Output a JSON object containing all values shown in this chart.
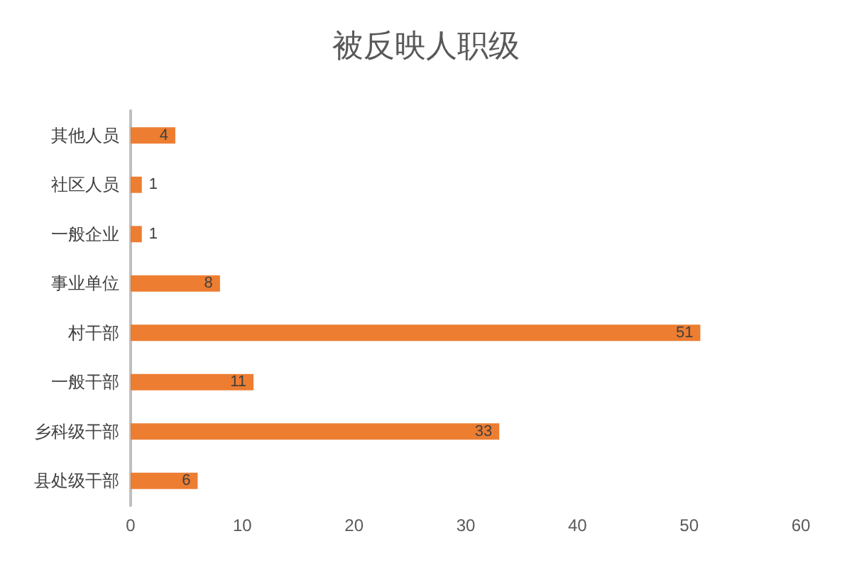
{
  "chart_data": {
    "type": "bar",
    "title": "被反映人职级",
    "orientation": "horizontal",
    "categories": [
      "其他人员",
      "社区人员",
      "一般企业",
      "事业单位",
      "村干部",
      "一般干部",
      "乡科级干部",
      "县处级干部"
    ],
    "values": [
      4,
      1,
      1,
      8,
      51,
      11,
      33,
      6
    ],
    "color": "#ed7d31",
    "xlim": [
      0,
      60
    ],
    "xticks": [
      0,
      10,
      20,
      30,
      40,
      50,
      60
    ],
    "grid": false,
    "data_labels": true
  }
}
